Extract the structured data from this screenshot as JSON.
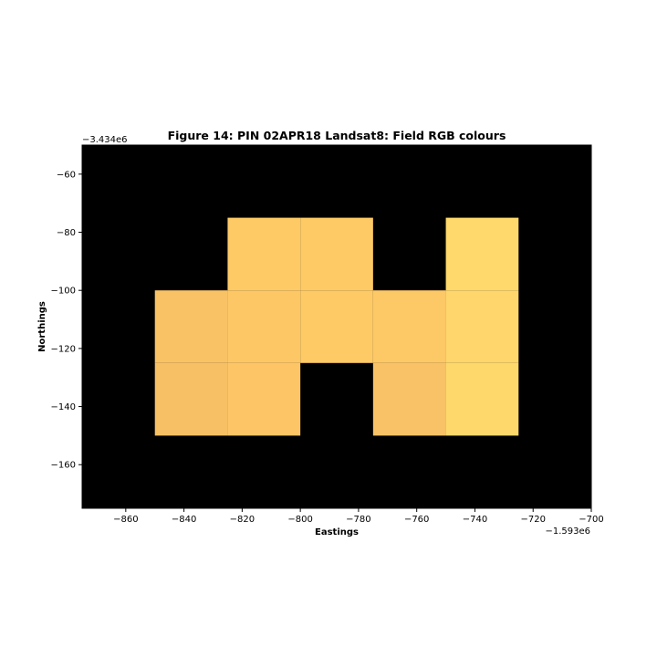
{
  "chart_data": {
    "type": "heatmap",
    "title": "Figure 14: PIN 02APR18  Landsat8: Field RGB colours",
    "xlabel": "Eastings",
    "ylabel": "Northings",
    "x_offset_label": "−1.593e6",
    "y_offset_label": "−3.434e6",
    "xlim": [
      -875,
      -700
    ],
    "ylim": [
      -175,
      -50
    ],
    "x_ticks": [
      -860,
      -840,
      -820,
      -800,
      -780,
      -760,
      -740,
      -720,
      -700
    ],
    "x_tick_labels": [
      "−860",
      "−840",
      "−820",
      "−800",
      "−780",
      "−760",
      "−740",
      "−720",
      "−700"
    ],
    "y_ticks": [
      -60,
      -80,
      -100,
      -120,
      -140,
      -160
    ],
    "y_tick_labels": [
      "−60",
      "−80",
      "−100",
      "−120",
      "−140",
      "−160"
    ],
    "background_color": "#000000",
    "cell_size": 25,
    "cells": [
      {
        "x0": -825,
        "x1": -800,
        "y0": -100,
        "y1": -75,
        "color": "#fdca66"
      },
      {
        "x0": -800,
        "x1": -775,
        "y0": -100,
        "y1": -75,
        "color": "#fdca66"
      },
      {
        "x0": -750,
        "x1": -725,
        "y0": -100,
        "y1": -75,
        "color": "#ffd96c"
      },
      {
        "x0": -850,
        "x1": -825,
        "y0": -125,
        "y1": -100,
        "color": "#f9c265"
      },
      {
        "x0": -825,
        "x1": -800,
        "y0": -125,
        "y1": -100,
        "color": "#fdc766"
      },
      {
        "x0": -800,
        "x1": -775,
        "y0": -125,
        "y1": -100,
        "color": "#fdca66"
      },
      {
        "x0": -775,
        "x1": -750,
        "y0": -125,
        "y1": -100,
        "color": "#fdc866"
      },
      {
        "x0": -750,
        "x1": -725,
        "y0": -125,
        "y1": -100,
        "color": "#ffd66b"
      },
      {
        "x0": -850,
        "x1": -825,
        "y0": -150,
        "y1": -125,
        "color": "#f7c064"
      },
      {
        "x0": -825,
        "x1": -800,
        "y0": -150,
        "y1": -125,
        "color": "#fdc566"
      },
      {
        "x0": -775,
        "x1": -750,
        "y0": -150,
        "y1": -125,
        "color": "#f9c266"
      },
      {
        "x0": -750,
        "x1": -725,
        "y0": -150,
        "y1": -125,
        "color": "#ffd86b"
      }
    ]
  }
}
